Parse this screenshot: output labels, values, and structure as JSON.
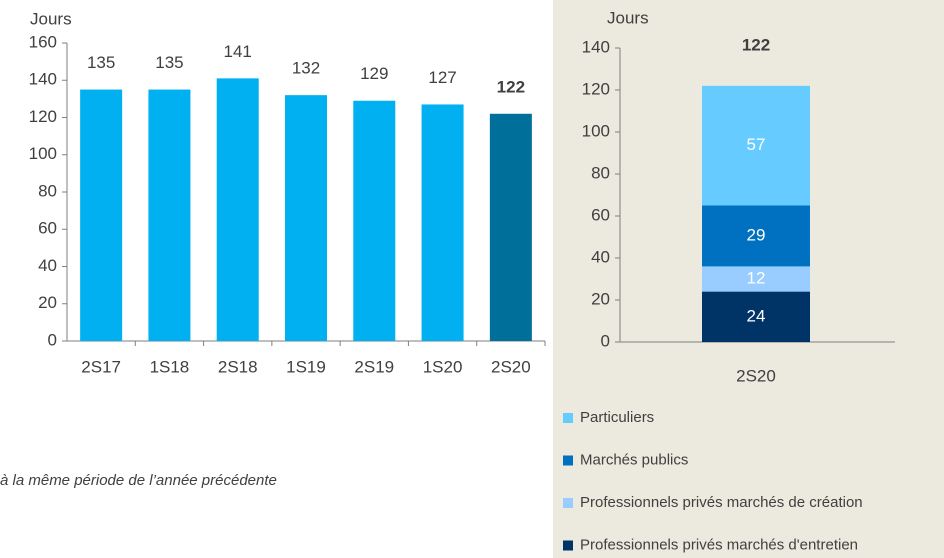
{
  "chart_data": [
    {
      "type": "bar",
      "ylabel": "Jours",
      "categories": [
        "2S17",
        "1S18",
        "2S18",
        "1S19",
        "2S19",
        "1S20",
        "2S20"
      ],
      "values": [
        135,
        135,
        141,
        132,
        129,
        127,
        122
      ],
      "colors": [
        "#00b0f0",
        "#00b0f0",
        "#00b0f0",
        "#00b0f0",
        "#00b0f0",
        "#00b0f0",
        "#00709a"
      ],
      "bold_labels": [
        false,
        false,
        false,
        false,
        false,
        false,
        true
      ],
      "ylim": [
        0,
        160
      ],
      "yticks": [
        0,
        20,
        40,
        60,
        80,
        100,
        120,
        140,
        160
      ]
    },
    {
      "type": "stacked_bar",
      "ylabel": "Jours",
      "categories": [
        "2S20"
      ],
      "total": 122,
      "series": [
        {
          "name": "Professionnels privés marchés d'entretien",
          "color": "#003366",
          "values": [
            24
          ]
        },
        {
          "name": "Professionnels privés marchés de création",
          "color": "#99ccff",
          "values": [
            12
          ]
        },
        {
          "name": "Marchés publics",
          "color": "#0070c0",
          "values": [
            29
          ]
        },
        {
          "name": "Particuliers",
          "color": "#66ccff",
          "values": [
            57
          ]
        }
      ],
      "ylim": [
        0,
        140
      ],
      "yticks": [
        0,
        20,
        40,
        60,
        80,
        100,
        120,
        140
      ],
      "legend": "bottom"
    }
  ],
  "note": "à la même période de l’année précédente"
}
